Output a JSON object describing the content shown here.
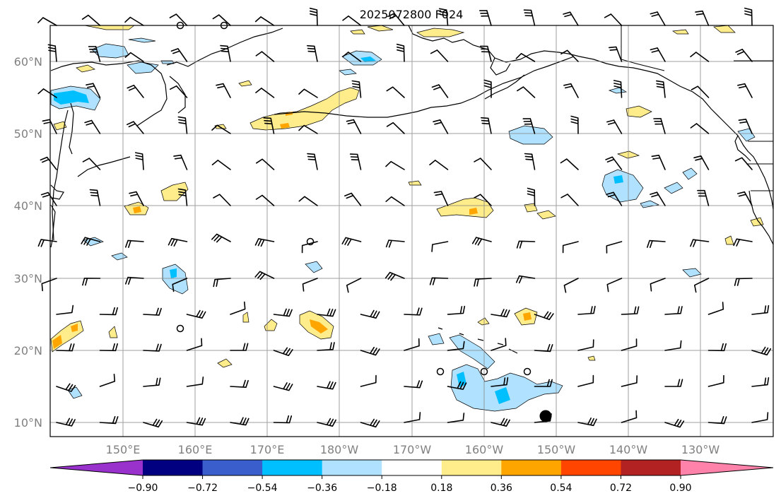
{
  "title": "2025072800 F024",
  "map": {
    "lat_labels": [
      "60°N",
      "50°N",
      "40°N",
      "30°N",
      "20°N",
      "10°N"
    ],
    "lon_labels": [
      "150°E",
      "160°E",
      "170°E",
      "180°W",
      "170°W",
      "160°W",
      "150°W",
      "140°W",
      "130°W"
    ],
    "gridline_color": "#808080",
    "coastline_color": "#000000"
  },
  "colorbar": {
    "colors": [
      "#9932cc",
      "#000080",
      "#3a5fcd",
      "#00bfff",
      "#b0e2ff",
      "#ffffff",
      "#ffec8b",
      "#ffa500",
      "#ff4500",
      "#b22222",
      "#ff82ab"
    ],
    "tick_labels": [
      "−0.90",
      "−0.72",
      "−0.54",
      "−0.36",
      "−0.18",
      "0.18",
      "0.36",
      "0.54",
      "0.72",
      "0.90"
    ]
  }
}
